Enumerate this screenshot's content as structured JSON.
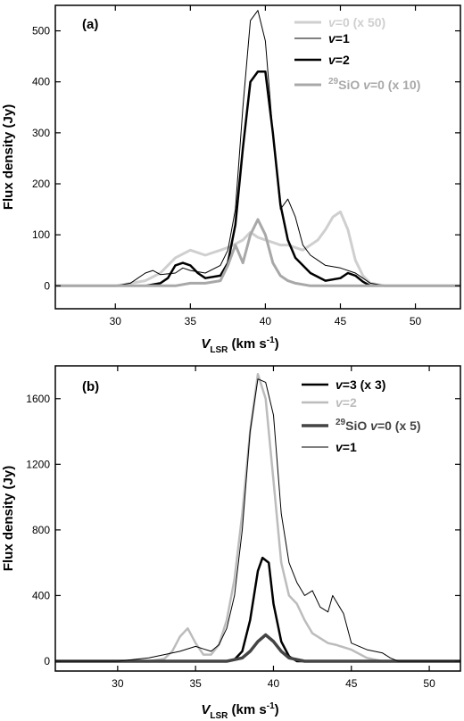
{
  "chart_data": [
    {
      "type": "line",
      "panel_label": "(a)",
      "xlabel": {
        "main": "V",
        "sub": "LSR",
        "units": " (km s",
        "exp": "-1",
        "close": ")"
      },
      "ylabel": "Flux density (Jy)",
      "xlim": [
        26,
        53
      ],
      "ylim": [
        -45,
        550
      ],
      "xticks": [
        30,
        35,
        40,
        45,
        50
      ],
      "yticks": [
        0,
        100,
        200,
        300,
        400,
        500
      ],
      "legend_position": "top-right",
      "series": [
        {
          "name_prefix": "",
          "name_main": "v",
          "name_suffix": "=0 (x 50)",
          "color": "#cfcfcf",
          "width": 3,
          "x": [
            26,
            30,
            32,
            33,
            34,
            35,
            36,
            37,
            37.5,
            38,
            38.5,
            39,
            39.5,
            40,
            40.5,
            41,
            41.5,
            42,
            42.5,
            43,
            43.5,
            44,
            44.5,
            45,
            45.5,
            46,
            46.5,
            47,
            48,
            50,
            53
          ],
          "y": [
            0,
            0,
            10,
            25,
            55,
            70,
            60,
            70,
            75,
            82,
            90,
            105,
            95,
            90,
            85,
            80,
            80,
            75,
            70,
            80,
            90,
            110,
            135,
            145,
            110,
            50,
            20,
            5,
            0,
            0,
            0
          ]
        },
        {
          "name_prefix": "",
          "name_main": "v",
          "name_suffix": "=1",
          "color": "#000000",
          "width": 1,
          "x": [
            26,
            30,
            31,
            31.5,
            32,
            32.5,
            33,
            34,
            34.5,
            35,
            36,
            37,
            37.5,
            38,
            38.5,
            39,
            39.5,
            40,
            40.5,
            41,
            41.5,
            42,
            42.5,
            43,
            43.5,
            44,
            45,
            46,
            46.5,
            47,
            48,
            53
          ],
          "y": [
            0,
            0,
            5,
            15,
            25,
            30,
            22,
            25,
            35,
            30,
            25,
            40,
            70,
            150,
            350,
            520,
            540,
            480,
            300,
            150,
            170,
            135,
            80,
            60,
            50,
            40,
            35,
            25,
            15,
            5,
            0,
            0
          ]
        },
        {
          "name_prefix": "",
          "name_main": "v",
          "name_suffix": "=2",
          "color": "#000000",
          "width": 2.5,
          "x": [
            26,
            32,
            33,
            33.5,
            34,
            34.5,
            35,
            35.5,
            36,
            37,
            37.5,
            38,
            38.5,
            39,
            39.5,
            40,
            40.5,
            41,
            41.5,
            42,
            42.5,
            43,
            44,
            45,
            45.5,
            46,
            46.5,
            47,
            53
          ],
          "y": [
            0,
            0,
            5,
            15,
            40,
            45,
            40,
            25,
            15,
            20,
            45,
            120,
            270,
            400,
            420,
            420,
            300,
            160,
            90,
            55,
            40,
            25,
            10,
            15,
            25,
            20,
            8,
            0,
            0
          ]
        },
        {
          "name_prefix": "29",
          "name_main": "SiO ",
          "name_suffix": "v=0 (x 10)",
          "color": "#a8a8a8",
          "width": 3,
          "x": [
            26,
            34,
            35,
            36,
            37,
            37.5,
            38,
            38.5,
            39,
            39.5,
            40,
            40.5,
            41,
            41.5,
            42,
            43,
            44,
            53
          ],
          "y": [
            0,
            0,
            5,
            5,
            10,
            40,
            80,
            45,
            100,
            130,
            100,
            45,
            20,
            10,
            5,
            0,
            0,
            0
          ]
        }
      ]
    },
    {
      "type": "line",
      "panel_label": "(b)",
      "xlabel": {
        "main": "V",
        "sub": "LSR",
        "units": " (km s",
        "exp": "-1",
        "close": ")"
      },
      "ylabel": "Flux density (Jy)",
      "xlim": [
        26,
        52
      ],
      "ylim": [
        -60,
        1800
      ],
      "xticks": [
        30,
        35,
        40,
        45,
        50
      ],
      "yticks": [
        0,
        400,
        800,
        1200,
        1600
      ],
      "legend_position": "top-right",
      "series": [
        {
          "name_prefix": "",
          "name_main": "v",
          "name_suffix": "=3 (x 3)",
          "color": "#000000",
          "width": 2.5,
          "x": [
            26,
            37,
            37.5,
            38,
            38.5,
            39,
            39.3,
            39.7,
            40,
            40.5,
            41,
            41.5,
            52
          ],
          "y": [
            0,
            0,
            10,
            60,
            250,
            550,
            630,
            600,
            350,
            120,
            30,
            0,
            0
          ]
        },
        {
          "name_prefix": "",
          "name_main": "v",
          "name_suffix": "=2",
          "color": "#bcbcbc",
          "width": 2.5,
          "x": [
            26,
            32,
            33,
            33.5,
            34,
            34.5,
            35,
            35.5,
            36,
            36.5,
            37,
            37.5,
            38,
            38.5,
            39,
            39.5,
            40,
            40.5,
            41,
            41.5,
            42,
            42.5,
            43,
            43.5,
            44,
            45,
            46,
            47,
            52
          ],
          "y": [
            0,
            0,
            15,
            60,
            150,
            200,
            110,
            40,
            40,
            100,
            250,
            500,
            900,
            1400,
            1750,
            1600,
            1100,
            600,
            400,
            350,
            250,
            170,
            140,
            110,
            100,
            70,
            20,
            0,
            0
          ]
        },
        {
          "name_prefix": "29",
          "name_main": "SiO ",
          "name_suffix": "v=0 (x 5)",
          "color": "#444444",
          "width": 3.5,
          "x": [
            26,
            37,
            38,
            38.5,
            39,
            39.5,
            40,
            40.5,
            41,
            42,
            52
          ],
          "y": [
            0,
            0,
            20,
            60,
            120,
            160,
            120,
            60,
            20,
            0,
            0
          ]
        },
        {
          "name_prefix": "",
          "name_main": "v",
          "name_suffix": "=1",
          "color": "#000000",
          "width": 1,
          "x": [
            26,
            30,
            31,
            32,
            33,
            34,
            35,
            35.5,
            36,
            36.5,
            37,
            37.5,
            38,
            38.5,
            39,
            39.5,
            40,
            40.5,
            41,
            41.5,
            42,
            42.5,
            43,
            43.5,
            43.8,
            44.5,
            45,
            46,
            47,
            47.5,
            48,
            52
          ],
          "y": [
            0,
            0,
            10,
            20,
            40,
            60,
            90,
            75,
            60,
            100,
            200,
            400,
            800,
            1400,
            1720,
            1700,
            1500,
            900,
            600,
            480,
            400,
            430,
            330,
            300,
            400,
            290,
            110,
            70,
            50,
            20,
            0,
            0
          ]
        }
      ]
    }
  ]
}
